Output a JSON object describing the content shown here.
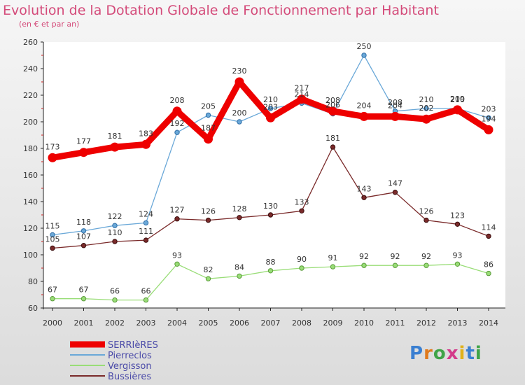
{
  "header": {
    "title": "Evolution de la Dotation Globale de Fonctionnement par Habitant",
    "subtitle": "(en € et par an)"
  },
  "brand": {
    "letters": [
      "P",
      "r",
      "o",
      "x",
      "i",
      "t",
      "i"
    ]
  },
  "chart_data": {
    "type": "line",
    "title": "Evolution de la Dotation Globale de Fonctionnement par Habitant",
    "subtitle": "(en € et par an)",
    "xlabel": "",
    "ylabel": "",
    "x": [
      "2000",
      "2001",
      "2002",
      "2003",
      "2004",
      "2005",
      "2006",
      "2007",
      "2008",
      "2009",
      "2010",
      "2011",
      "2012",
      "2013",
      "2014"
    ],
    "ylim": [
      60,
      260
    ],
    "yticks": [
      60,
      80,
      100,
      120,
      140,
      160,
      180,
      200,
      220,
      240,
      260
    ],
    "grid": false,
    "legend": "bottom-left",
    "series": [
      {
        "name": "SERRIèRES",
        "color": "#ee0000",
        "width": 9,
        "marker": 6,
        "values": [
          173,
          177,
          181,
          183,
          208,
          187,
          230,
          203,
          217,
          208,
          204,
          204,
          202,
          209,
          194
        ],
        "labels": [
          "173",
          "177",
          "181",
          "183",
          "208",
          "187",
          "230",
          "203",
          "217",
          "208",
          "204",
          "204",
          "202",
          "209",
          "194"
        ]
      },
      {
        "name": "Pierreclos",
        "color": "#6aa8d8",
        "width": 1.3,
        "marker": 3.2,
        "values": [
          115,
          118,
          122,
          124,
          192,
          205,
          200,
          210,
          214,
          206,
          250,
          208,
          210,
          210,
          203
        ],
        "labels": [
          "115",
          "118",
          "122",
          "124",
          "192",
          "205",
          "200",
          "210",
          "214",
          "206",
          "250",
          "208",
          "210",
          "210",
          "203"
        ]
      },
      {
        "name": "Vergisson",
        "color": "#99dd77",
        "width": 1.3,
        "marker": 3.2,
        "values": [
          67,
          67,
          66,
          66,
          93,
          82,
          84,
          88,
          90,
          91,
          92,
          92,
          92,
          93,
          86
        ],
        "labels": [
          "67",
          "67",
          "66",
          "66",
          "93",
          "82",
          "84",
          "88",
          "90",
          "91",
          "92",
          "92",
          "92",
          "93",
          "86"
        ]
      },
      {
        "name": "Bussières",
        "color": "#7a2a2a",
        "width": 1.3,
        "marker": 3.2,
        "values": [
          105,
          107,
          110,
          111,
          127,
          126,
          128,
          130,
          133,
          181,
          143,
          147,
          126,
          123,
          114
        ],
        "labels": [
          "105",
          "107",
          "110",
          "111",
          "127",
          "126",
          "128",
          "130",
          "133",
          "181",
          "143",
          "147",
          "126",
          "123",
          "114"
        ]
      }
    ]
  }
}
